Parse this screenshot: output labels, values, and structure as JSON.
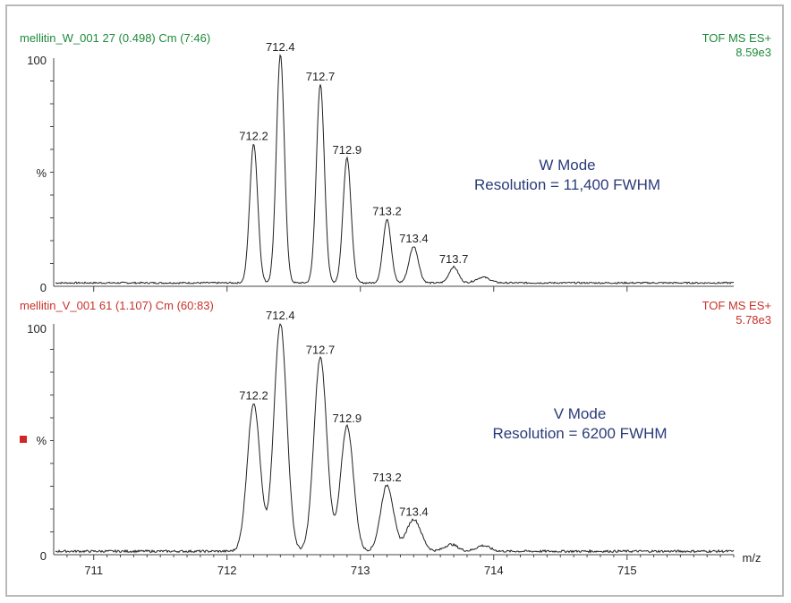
{
  "x_axis": {
    "label": "m/z",
    "ticks": [
      "711",
      "712",
      "713",
      "714",
      "715"
    ]
  },
  "colors": {
    "top_header": "#1e8a3c",
    "bottom_header": "#c8322a",
    "mode_text": "#2a3b7a",
    "trace": "#202020",
    "frame": "#b9b9b9",
    "marker": "#d02828"
  },
  "chart_data": [
    {
      "type": "line",
      "title": "mellitin_W_001 27 (0.498) Cm (7:46)",
      "header_right": [
        "TOF MS ES+",
        "8.59e3"
      ],
      "xlabel": "",
      "ylabel": "%",
      "y_ticks": [
        "100",
        "0"
      ],
      "xlim": [
        710.7,
        715.8
      ],
      "ylim": [
        0,
        100
      ],
      "annotation": [
        "W Mode",
        "Resolution = 11,400 FWHM"
      ],
      "peaks": [
        {
          "x": 712.2,
          "y": 61,
          "label": "712.2"
        },
        {
          "x": 712.4,
          "y": 100,
          "label": "712.4"
        },
        {
          "x": 712.7,
          "y": 87,
          "label": "712.7"
        },
        {
          "x": 712.9,
          "y": 55,
          "label": "712.9"
        },
        {
          "x": 713.2,
          "y": 28,
          "label": "713.2"
        },
        {
          "x": 713.4,
          "y": 16,
          "label": "713.4"
        },
        {
          "x": 713.7,
          "y": 7,
          "label": "713.7"
        }
      ]
    },
    {
      "type": "line",
      "title": "mellitin_V_001 61 (1.107) Cm (60:83)",
      "header_right": [
        "TOF MS ES+",
        "5.78e3"
      ],
      "xlabel": "m/z",
      "ylabel": "%",
      "y_ticks": [
        "100",
        "0"
      ],
      "xlim": [
        710.7,
        715.8
      ],
      "ylim": [
        0,
        100
      ],
      "annotation": [
        "V Mode",
        "Resolution = 6200 FWHM"
      ],
      "peaks": [
        {
          "x": 712.2,
          "y": 65,
          "label": "712.2"
        },
        {
          "x": 712.4,
          "y": 100,
          "label": "712.4"
        },
        {
          "x": 712.7,
          "y": 85,
          "label": "712.7"
        },
        {
          "x": 712.9,
          "y": 55,
          "label": "712.9"
        },
        {
          "x": 713.2,
          "y": 29,
          "label": "713.2"
        },
        {
          "x": 713.4,
          "y": 14,
          "label": "713.4"
        }
      ]
    }
  ]
}
